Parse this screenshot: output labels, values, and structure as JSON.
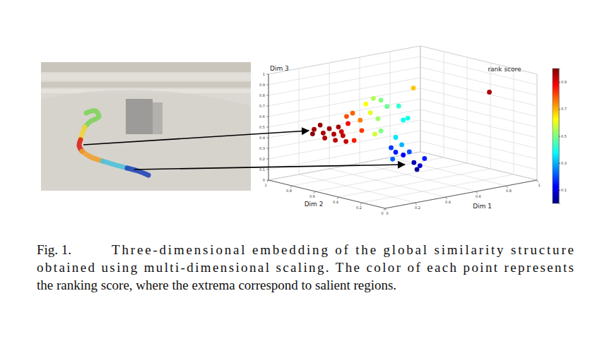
{
  "chart_data": {
    "type": "scatter3d",
    "x_label": "Dim 1",
    "y_label": "Dim 2",
    "z_label": "Dim 3",
    "colorbar_label": "rank score",
    "xlim": [
      0,
      1
    ],
    "ylim": [
      0,
      1
    ],
    "zlim": [
      0,
      1
    ],
    "xticks": [
      0,
      0.2,
      0.4,
      0.6,
      0.8,
      1
    ],
    "yticks": [
      0,
      0.2,
      0.4,
      0.6,
      0.8,
      1
    ],
    "zticks": [
      0,
      0.1,
      0.2,
      0.3,
      0.4,
      0.5,
      0.6,
      0.7,
      0.8,
      0.9,
      1
    ],
    "grid": true,
    "color_range": [
      0,
      1
    ],
    "color_ticks": [
      0.1,
      0.3,
      0.5,
      0.7,
      0.9
    ],
    "x": [
      0.07,
      0.11,
      0.13,
      0.17,
      0.2,
      0.23,
      0.26,
      0.28,
      0.06,
      0.14,
      0.21,
      0.25,
      0.13,
      0.17,
      0.22,
      0.23,
      0.18,
      0.14,
      0.18,
      0.23,
      0.28,
      0.32,
      0.21,
      0.26,
      0.28,
      0.24,
      0.32,
      0.35,
      0.38,
      0.3,
      0.34,
      0.27,
      0.3,
      0.35,
      0.39,
      0.42,
      0.46,
      0.49,
      0.44,
      0.28,
      0.57,
      0.84
    ],
    "y": [
      0.7,
      0.7,
      0.7,
      0.7,
      0.7,
      0.7,
      0.7,
      0.7,
      0.7,
      0.7,
      0.7,
      0.7,
      0.5,
      0.5,
      0.5,
      0.5,
      0.5,
      0.5,
      0.4,
      0.4,
      0.4,
      0.4,
      0.4,
      0.4,
      0.4,
      0.4,
      0.3,
      0.3,
      0.3,
      0.3,
      0.3,
      0.3,
      0.3,
      0.3,
      0.3,
      0.3,
      0.3,
      0.3,
      0.3,
      0.3,
      0.5,
      0.2
    ],
    "z": [
      0.54,
      0.57,
      0.49,
      0.52,
      0.46,
      0.52,
      0.43,
      0.37,
      0.5,
      0.44,
      0.4,
      0.47,
      0.7,
      0.72,
      0.64,
      0.54,
      0.46,
      0.63,
      0.83,
      0.87,
      0.84,
      0.77,
      0.74,
      0.67,
      0.55,
      0.53,
      0.8,
      0.66,
      0.67,
      0.51,
      0.43,
      0.42,
      0.37,
      0.33,
      0.35,
      0.24,
      0.2,
      0.26,
      0.17,
      0.31,
      0.85,
      0.82
    ],
    "values": [
      0.97,
      0.98,
      0.96,
      0.97,
      0.95,
      0.96,
      0.94,
      0.93,
      0.99,
      0.95,
      0.94,
      0.92,
      0.8,
      0.78,
      0.75,
      0.82,
      0.85,
      0.88,
      0.62,
      0.55,
      0.5,
      0.48,
      0.6,
      0.53,
      0.5,
      0.58,
      0.42,
      0.38,
      0.4,
      0.35,
      0.3,
      0.18,
      0.15,
      0.12,
      0.2,
      0.05,
      0.08,
      0.15,
      0.03,
      0.22,
      0.68,
      0.95
    ]
  },
  "caption": {
    "label": "Fig. 1.",
    "lines": [
      "Three-dimensional embedding of the global similarity structure",
      "obtained using multi-dimensional scaling. The color of each point represents",
      "the ranking score, where the extrema correspond to salient regions."
    ]
  }
}
